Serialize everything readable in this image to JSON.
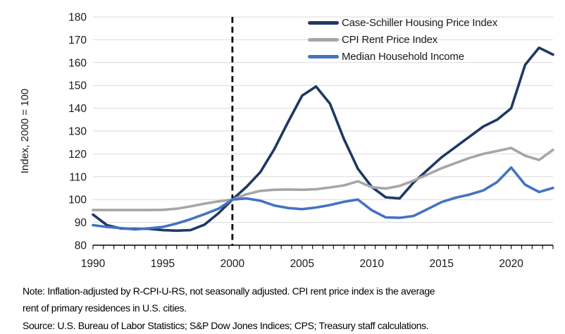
{
  "chart_data": {
    "type": "line",
    "title": "",
    "xlabel": "",
    "ylabel": "Index, 2000 = 100",
    "xlim": [
      1990,
      2023
    ],
    "ylim": [
      80,
      180
    ],
    "yticks": [
      80,
      90,
      100,
      110,
      120,
      130,
      140,
      150,
      160,
      170,
      180
    ],
    "xticks": [
      1990,
      1995,
      2000,
      2005,
      2010,
      2015,
      2020
    ],
    "grid": "horizontal",
    "legend_position": "top-right-inside",
    "annotations": {
      "vline_x": 2000,
      "vline_style": "dashed black"
    },
    "x": [
      1990,
      1991,
      1992,
      1993,
      1994,
      1995,
      1996,
      1997,
      1998,
      1999,
      2000,
      2001,
      2002,
      2003,
      2004,
      2005,
      2006,
      2007,
      2008,
      2009,
      2010,
      2011,
      2012,
      2013,
      2014,
      2015,
      2016,
      2017,
      2018,
      2019,
      2020,
      2021,
      2022,
      2023
    ],
    "series": [
      {
        "name": "Case-Schiller Housing Price Index",
        "color": "#1F3864",
        "values": [
          93.4,
          88.8,
          87.3,
          87.2,
          87.2,
          86.6,
          86.4,
          86.6,
          89.0,
          94.0,
          100,
          105.5,
          112.0,
          122.0,
          134.0,
          145.5,
          149.5,
          142.0,
          126.5,
          113.5,
          105.5,
          101.0,
          100.5,
          107.5,
          113.0,
          118.5,
          123.0,
          127.5,
          132.0,
          135.0,
          140.0,
          159.0,
          166.5,
          163.5
        ]
      },
      {
        "name": "CPI Rent Price Index",
        "color": "#A6A6A6",
        "values": [
          95.4,
          95.4,
          95.4,
          95.4,
          95.4,
          95.5,
          96.0,
          97.0,
          98.2,
          99.2,
          100,
          102.3,
          103.8,
          104.3,
          104.4,
          104.3,
          104.5,
          105.3,
          106.2,
          108.0,
          105.4,
          104.8,
          106.0,
          108.3,
          111.0,
          113.7,
          116.0,
          118.2,
          120.0,
          121.3,
          122.6,
          119.2,
          117.3,
          121.8
        ]
      },
      {
        "name": "Median Household Income",
        "color": "#4472C4",
        "values": [
          88.8,
          88.0,
          87.5,
          86.9,
          87.4,
          88.0,
          89.5,
          91.4,
          93.6,
          96.0,
          100,
          100.5,
          99.5,
          97.4,
          96.3,
          95.8,
          96.5,
          97.6,
          99.0,
          100.0,
          95.3,
          92.2,
          92.0,
          92.8,
          95.8,
          98.9,
          100.8,
          102.2,
          104.0,
          107.7,
          114.0,
          106.5,
          103.3,
          105.1
        ]
      }
    ]
  },
  "notes": [
    "Note: Inflation-adjusted by R-CPI-U-RS, not seasonally adjusted. CPI rent price index is the average",
    "rent of primary residences in U.S. cities.",
    "Source: U.S. Bureau of Labor Statistics; S&P Dow Jones Indices; CPS; Treasury staff calculations."
  ],
  "colors": {
    "gridline": "#D9D9D9",
    "axis": "#000000",
    "tick_label": "#1a1a1a",
    "vline": "#000000",
    "background": "#FFFFFF"
  }
}
